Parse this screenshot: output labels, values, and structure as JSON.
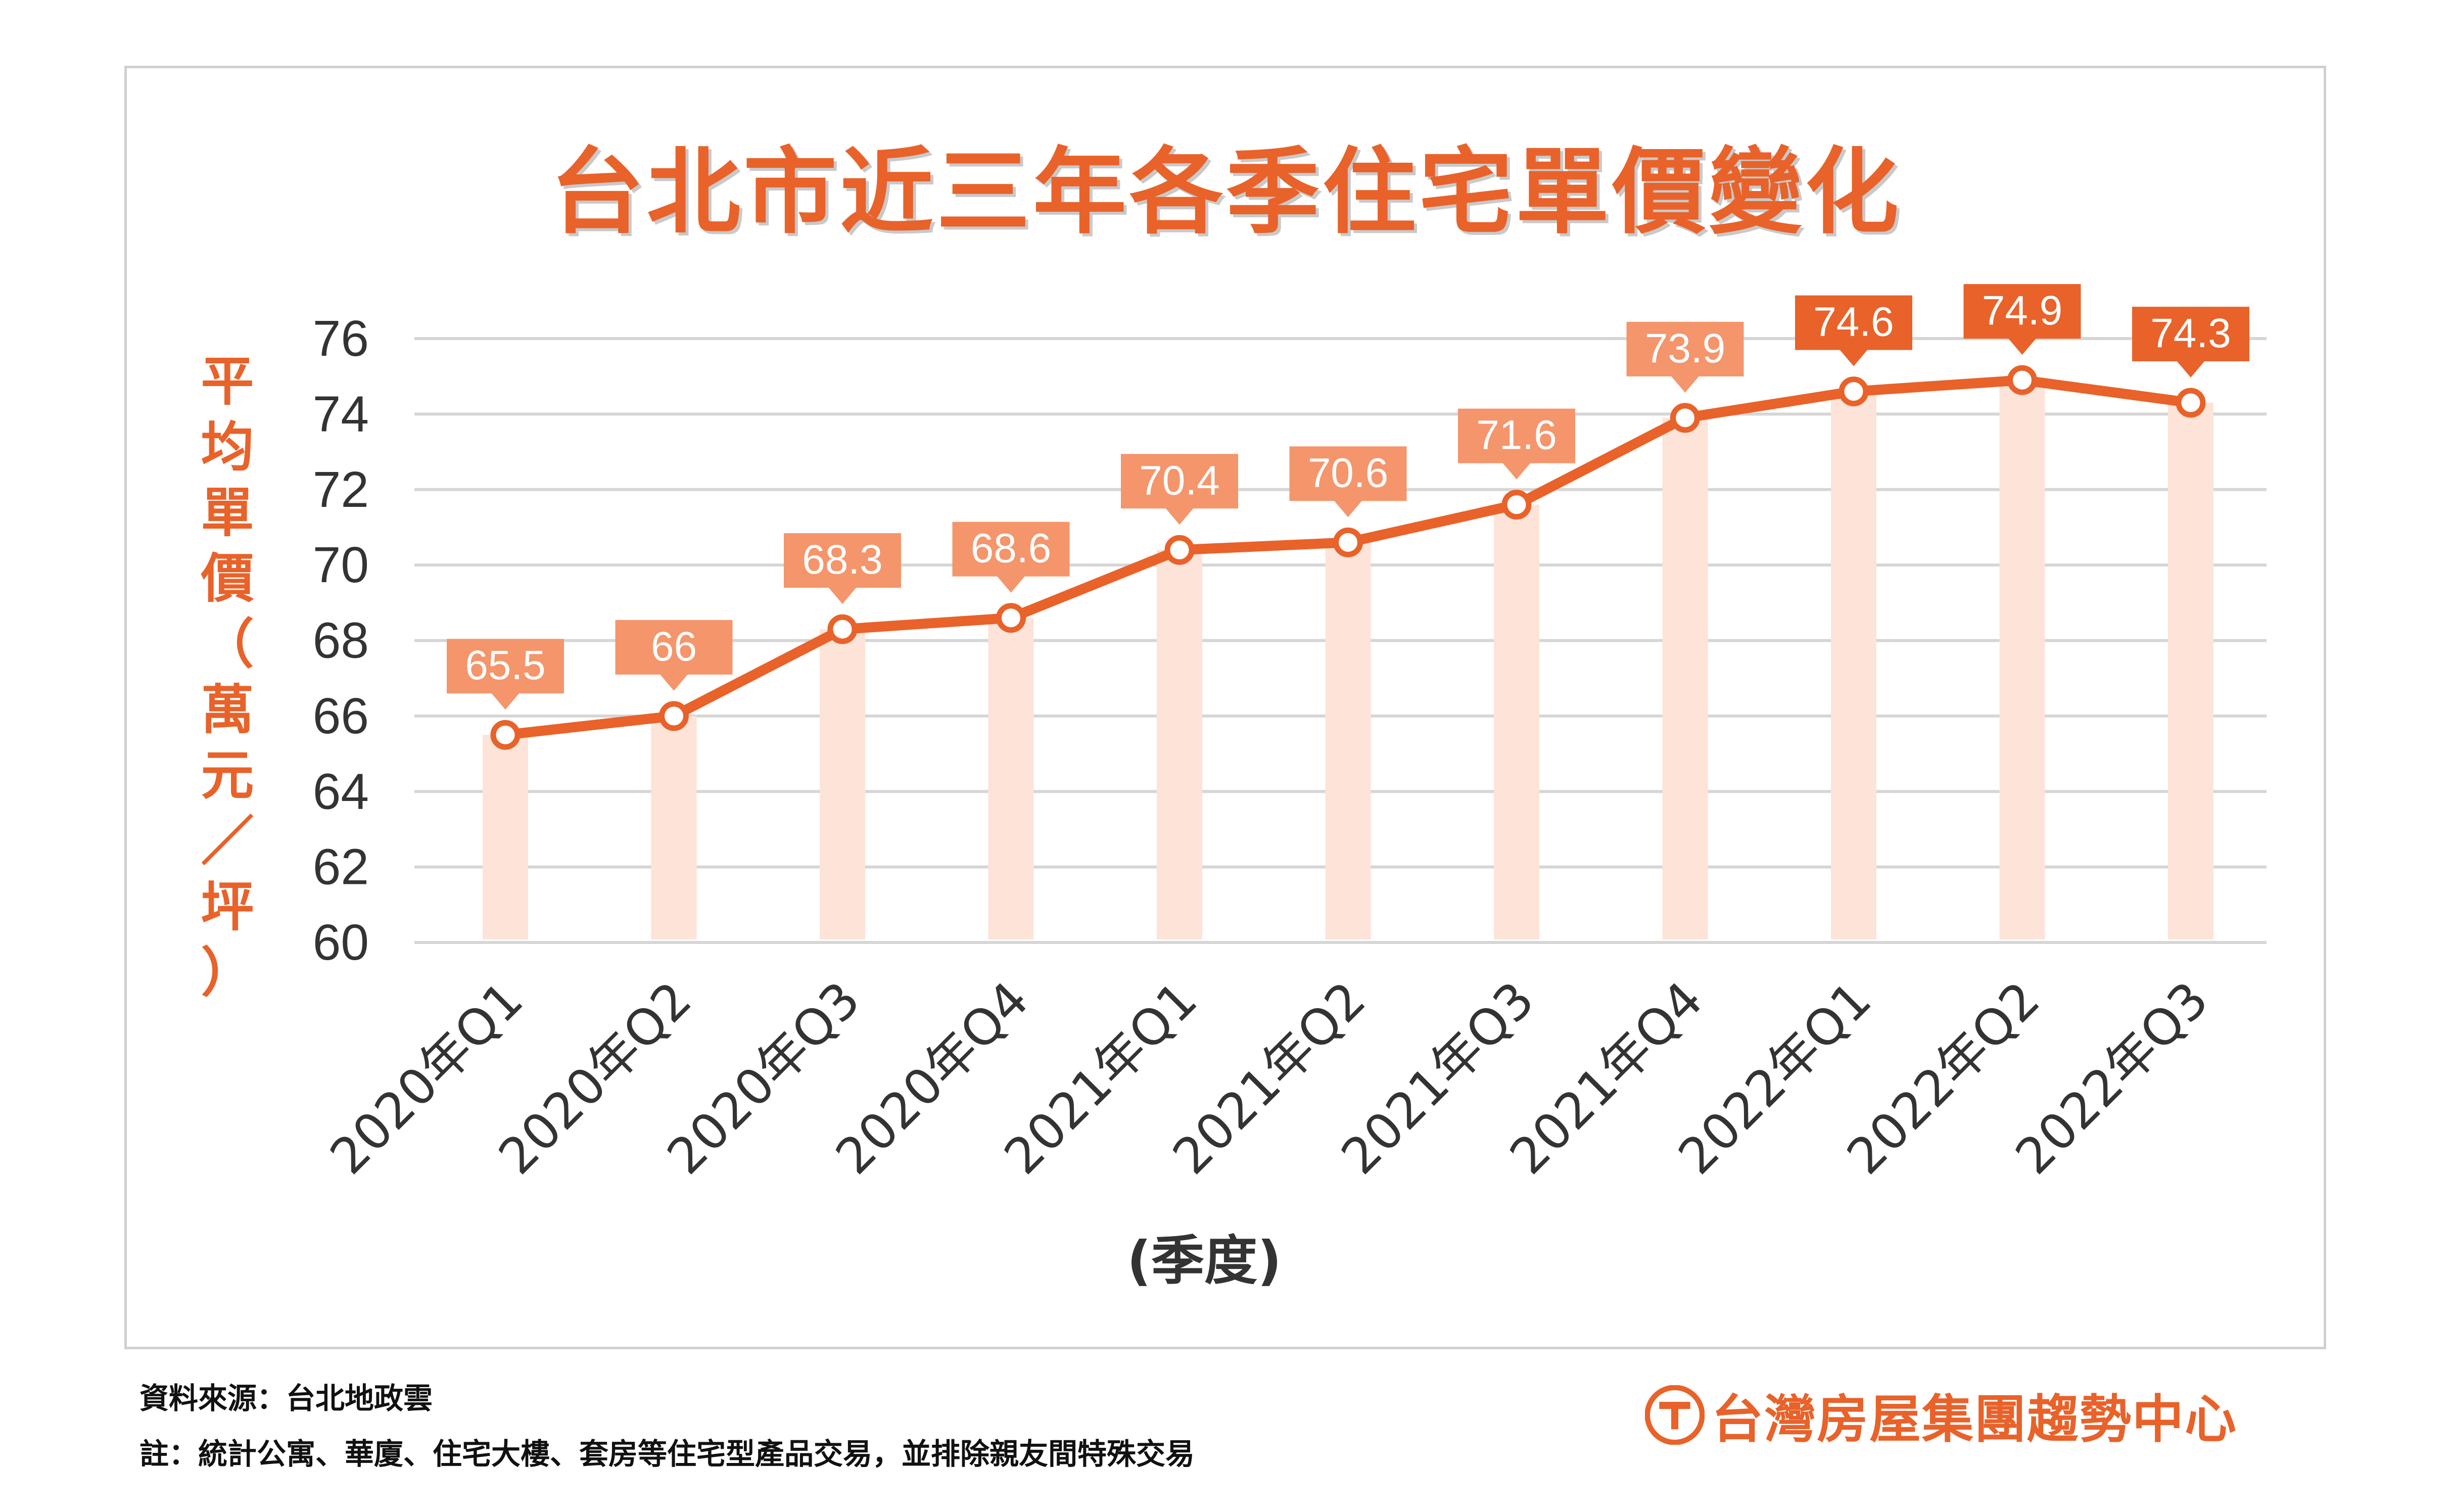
{
  "title": "台北市近三年各季住宅單價變化",
  "ylabel_chars": [
    "平",
    "均",
    "單",
    "價",
    "（",
    "萬",
    "元",
    "／",
    "坪",
    "）"
  ],
  "xlabel": "(季度)",
  "source": "資料來源：台北地政雲",
  "note": "註：統計公寓、華廈、住宅大樓、套房等住宅型產品交易，並排除親友間特殊交易",
  "logo_text": "台灣房屋集團趨勢中心",
  "colors": {
    "accent": "#e8622a",
    "bar_fill": "#fde3d8",
    "label_light": "#f4956b",
    "label_dark": "#e8622a",
    "grid": "#d6d6d6",
    "text": "#333333"
  },
  "chart_data": {
    "type": "line",
    "title": "台北市近三年各季住宅單價變化",
    "xlabel": "(季度)",
    "ylabel": "平均單價（萬元／坪）",
    "categories": [
      "2020年Q1",
      "2020年Q2",
      "2020年Q3",
      "2020年Q4",
      "2021年Q1",
      "2021年Q2",
      "2021年Q3",
      "2021年Q4",
      "2022年Q1",
      "2022年Q2",
      "2022年Q3"
    ],
    "values": [
      65.5,
      66,
      68.3,
      68.6,
      70.4,
      70.6,
      71.6,
      73.9,
      74.6,
      74.9,
      74.3
    ],
    "data_labels": [
      "65.5",
      "66",
      "68.3",
      "68.6",
      "70.4",
      "70.6",
      "71.6",
      "73.9",
      "74.6",
      "74.9",
      "74.3"
    ],
    "ylim": [
      60,
      76
    ],
    "yticks": [
      60,
      62,
      64,
      66,
      68,
      70,
      72,
      74,
      76
    ],
    "grid": true,
    "legend": "none",
    "background_bars": true
  }
}
